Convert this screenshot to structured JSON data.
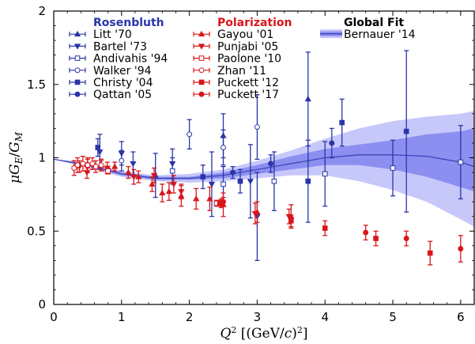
{
  "chart_data": {
    "type": "scatter",
    "xlabel_parts": [
      "Q",
      "2",
      " [(GeV/",
      "c",
      ")",
      "2",
      "]"
    ],
    "ylabel_parts": [
      "μ",
      "G",
      "E",
      "/",
      "G",
      "M"
    ],
    "xlim": [
      0,
      6.2
    ],
    "ylim": [
      0,
      2
    ],
    "x_ticks": [
      0,
      1,
      2,
      3,
      4,
      5,
      6
    ],
    "y_ticks": [
      0,
      0.5,
      1,
      1.5,
      2
    ],
    "x_tick_labels": [
      "0",
      "1",
      "2",
      "3",
      "4",
      "5",
      "6"
    ],
    "y_tick_labels": [
      "0",
      "0.5",
      "1",
      "1.5",
      "2"
    ],
    "grid": false,
    "legend_position": "top",
    "colors": {
      "rosenbluth": "#2a35a8",
      "polarization": "#d8161b",
      "fit_line": "#3a46b8",
      "fit_band_inner": "#8c8ff0",
      "fit_band_outer": "#c7c8fa"
    },
    "legend_groups": [
      {
        "title": "Rosenbluth",
        "color": "#2a35a8",
        "entries": [
          "Litt '70",
          "Bartel '73",
          "Andivahis '94",
          "Walker '94",
          "Christy '04",
          "Qattan '05"
        ]
      },
      {
        "title": "Polarization",
        "color": "#d8161b",
        "entries": [
          "Gayou '01",
          "Punjabi '05",
          "Paolone '10",
          "Zhan '11",
          "Puckett '12",
          "Puckett '17"
        ]
      },
      {
        "title": "Global Fit",
        "color": "#000000",
        "entries": [
          "Bernauer '14"
        ]
      }
    ],
    "series": [
      {
        "name": "Litt '70",
        "marker": "tri-up",
        "group": "rosenbluth",
        "points": [
          [
            1.5,
            0.88,
            0.15
          ],
          [
            2.5,
            1.15,
            0.15
          ],
          [
            3.75,
            1.4,
            0.32
          ]
        ]
      },
      {
        "name": "Bartel '73",
        "marker": "tri-down",
        "group": "rosenbluth",
        "points": [
          [
            0.68,
            1.04,
            0.12
          ],
          [
            1.0,
            1.03,
            0.08
          ],
          [
            1.17,
            0.96,
            0.08
          ],
          [
            1.75,
            0.96,
            0.1
          ],
          [
            2.33,
            0.82,
            0.22
          ],
          [
            2.9,
            0.84,
            0.25
          ],
          [
            3.0,
            0.6,
            0.3
          ]
        ]
      },
      {
        "name": "Andivahis '94",
        "marker": "sq-open",
        "group": "rosenbluth",
        "points": [
          [
            1.75,
            0.91,
            0.09
          ],
          [
            2.5,
            0.82,
            0.12
          ],
          [
            3.25,
            0.84,
            0.2
          ],
          [
            4.0,
            0.89,
            0.22
          ],
          [
            5.0,
            0.93,
            0.19
          ],
          [
            6.0,
            0.97,
            0.25
          ]
        ]
      },
      {
        "name": "Walker '94",
        "marker": "circ-open",
        "group": "rosenbluth",
        "points": [
          [
            1.0,
            0.98,
            0.07
          ],
          [
            2.0,
            1.16,
            0.1
          ],
          [
            2.5,
            1.07,
            0.12
          ],
          [
            3.0,
            1.21,
            0.22
          ]
        ]
      },
      {
        "name": "Christy '04",
        "marker": "sq",
        "group": "rosenbluth",
        "points": [
          [
            0.65,
            1.07,
            0.06
          ],
          [
            2.2,
            0.87,
            0.08
          ],
          [
            2.75,
            0.84,
            0.08
          ],
          [
            3.75,
            0.84,
            0.28
          ],
          [
            4.25,
            1.24,
            0.16
          ],
          [
            5.2,
            1.18,
            0.55
          ]
        ]
      },
      {
        "name": "Qattan '05",
        "marker": "circ",
        "group": "rosenbluth",
        "points": [
          [
            2.64,
            0.9,
            0.04
          ],
          [
            3.2,
            0.96,
            0.06
          ],
          [
            4.1,
            1.1,
            0.1
          ]
        ]
      },
      {
        "name": "Gayou '01",
        "marker": "tri-up",
        "group": "polarization",
        "points": [
          [
            0.5,
            0.96,
            0.03
          ],
          [
            0.7,
            0.95,
            0.03
          ],
          [
            0.9,
            0.94,
            0.03
          ],
          [
            1.1,
            0.9,
            0.04
          ],
          [
            1.25,
            0.87,
            0.04
          ],
          [
            1.45,
            0.82,
            0.05
          ],
          [
            1.6,
            0.76,
            0.06
          ],
          [
            1.7,
            0.77,
            0.06
          ],
          [
            1.88,
            0.74,
            0.07
          ],
          [
            2.1,
            0.72,
            0.07
          ],
          [
            2.3,
            0.72,
            0.08
          ],
          [
            2.5,
            0.68,
            0.08
          ],
          [
            3.0,
            0.63,
            0.07
          ],
          [
            3.5,
            0.6,
            0.08
          ]
        ]
      },
      {
        "name": "Punjabi '05",
        "marker": "tri-down",
        "group": "polarization",
        "points": [
          [
            0.38,
            0.94,
            0.04
          ],
          [
            0.49,
            0.9,
            0.04
          ],
          [
            0.79,
            0.93,
            0.04
          ],
          [
            1.18,
            0.87,
            0.05
          ],
          [
            1.48,
            0.88,
            0.05
          ],
          [
            1.77,
            0.82,
            0.06
          ],
          [
            1.88,
            0.77,
            0.05
          ],
          [
            2.47,
            0.69,
            0.03
          ],
          [
            2.97,
            0.62,
            0.07
          ],
          [
            3.47,
            0.6,
            0.05
          ]
        ]
      },
      {
        "name": "Paolone '10",
        "marker": "sq-open",
        "group": "polarization",
        "points": [
          [
            0.8,
            0.91,
            0.02
          ],
          [
            2.4,
            0.69,
            0.02
          ],
          [
            2.46,
            0.69,
            0.02
          ]
        ]
      },
      {
        "name": "Zhan '11",
        "marker": "circ-open",
        "group": "polarization",
        "points": [
          [
            0.3,
            0.93,
            0.05
          ],
          [
            0.35,
            0.95,
            0.05
          ],
          [
            0.43,
            0.96,
            0.05
          ],
          [
            0.5,
            0.95,
            0.05
          ],
          [
            0.57,
            0.96,
            0.04
          ],
          [
            0.62,
            0.94,
            0.04
          ],
          [
            0.7,
            0.95,
            0.04
          ]
        ]
      },
      {
        "name": "Puckett '12",
        "marker": "sq",
        "group": "polarization",
        "points": [
          [
            2.45,
            0.69,
            0.02
          ],
          [
            3.5,
            0.57,
            0.04
          ],
          [
            4.0,
            0.52,
            0.05
          ],
          [
            4.75,
            0.45,
            0.05
          ],
          [
            5.55,
            0.35,
            0.08
          ]
        ]
      },
      {
        "name": "Puckett '17",
        "marker": "circ",
        "group": "polarization",
        "points": [
          [
            2.5,
            0.7,
            0.03
          ],
          [
            4.6,
            0.49,
            0.05
          ],
          [
            5.2,
            0.45,
            0.05
          ],
          [
            6.0,
            0.38,
            0.09
          ]
        ]
      },
      {
        "name": "Bernauer '14",
        "marker": "band",
        "group": "fit",
        "curve": [
          [
            0,
            0.99
          ],
          [
            0.5,
            0.95
          ],
          [
            1,
            0.89
          ],
          [
            1.5,
            0.86
          ],
          [
            2,
            0.86
          ],
          [
            2.5,
            0.88
          ],
          [
            3,
            0.92
          ],
          [
            3.5,
            0.96
          ],
          [
            4,
            1.0
          ],
          [
            4.5,
            1.02
          ],
          [
            5,
            1.02
          ],
          [
            5.5,
            1.01
          ],
          [
            6,
            0.97
          ],
          [
            6.2,
            0.94
          ]
        ],
        "band_inner": [
          [
            0,
            0.99,
            0.99
          ],
          [
            0.5,
            0.94,
            0.96
          ],
          [
            1,
            0.88,
            0.9
          ],
          [
            1.5,
            0.85,
            0.87
          ],
          [
            2,
            0.85,
            0.87
          ],
          [
            2.5,
            0.86,
            0.9
          ],
          [
            3,
            0.89,
            0.95
          ],
          [
            3.5,
            0.92,
            1.01
          ],
          [
            4,
            0.95,
            1.06
          ],
          [
            4.5,
            0.95,
            1.09
          ],
          [
            5,
            0.92,
            1.12
          ],
          [
            5.5,
            0.87,
            1.16
          ],
          [
            6,
            0.8,
            1.18
          ],
          [
            6.2,
            0.77,
            1.2
          ]
        ],
        "band_outer": [
          [
            0,
            0.99,
            0.99
          ],
          [
            0.5,
            0.93,
            0.97
          ],
          [
            1,
            0.87,
            0.91
          ],
          [
            1.5,
            0.84,
            0.88
          ],
          [
            2,
            0.83,
            0.89
          ],
          [
            2.5,
            0.84,
            0.92
          ],
          [
            3,
            0.86,
            0.98
          ],
          [
            3.5,
            0.88,
            1.05
          ],
          [
            4,
            0.88,
            1.13
          ],
          [
            4.5,
            0.84,
            1.2
          ],
          [
            5,
            0.78,
            1.25
          ],
          [
            5.5,
            0.7,
            1.28
          ],
          [
            6,
            0.58,
            1.3
          ],
          [
            6.2,
            0.53,
            1.32
          ]
        ]
      }
    ]
  }
}
